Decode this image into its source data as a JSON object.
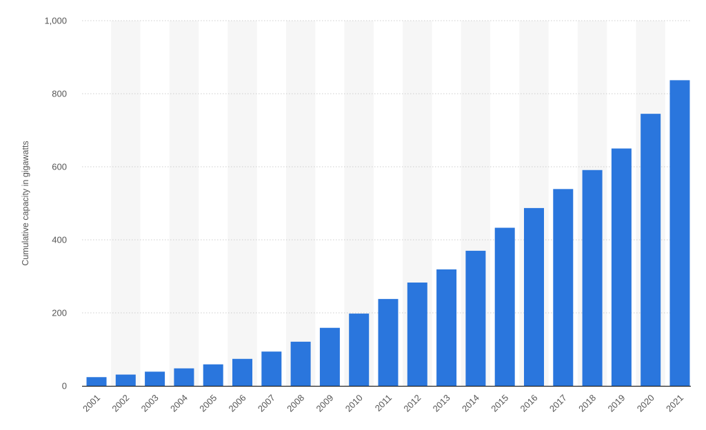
{
  "chart_data": {
    "type": "bar",
    "ylabel": "Cumulative capacity in gigawatts",
    "xlabel": "",
    "ylim": [
      0,
      1000
    ],
    "yticks": [
      0,
      200,
      400,
      600,
      800,
      1000
    ],
    "ytick_labels": [
      "0",
      "200",
      "400",
      "600",
      "800",
      "1,000"
    ],
    "categories": [
      "2001",
      "2002",
      "2003",
      "2004",
      "2005",
      "2006",
      "2007",
      "2008",
      "2009",
      "2010",
      "2011",
      "2012",
      "2013",
      "2014",
      "2015",
      "2016",
      "2017",
      "2018",
      "2019",
      "2020",
      "2021"
    ],
    "values": [
      24,
      31,
      39,
      48,
      59,
      74,
      94,
      121,
      159,
      198,
      238,
      283,
      319,
      370,
      433,
      487,
      539,
      591,
      650,
      745,
      837
    ],
    "grid": true,
    "alternating_column_shading": true,
    "colors": {
      "bar": "#2a76dd",
      "grid": "#cccccc",
      "shade": "#f6f6f6",
      "axis": "#222222"
    }
  }
}
